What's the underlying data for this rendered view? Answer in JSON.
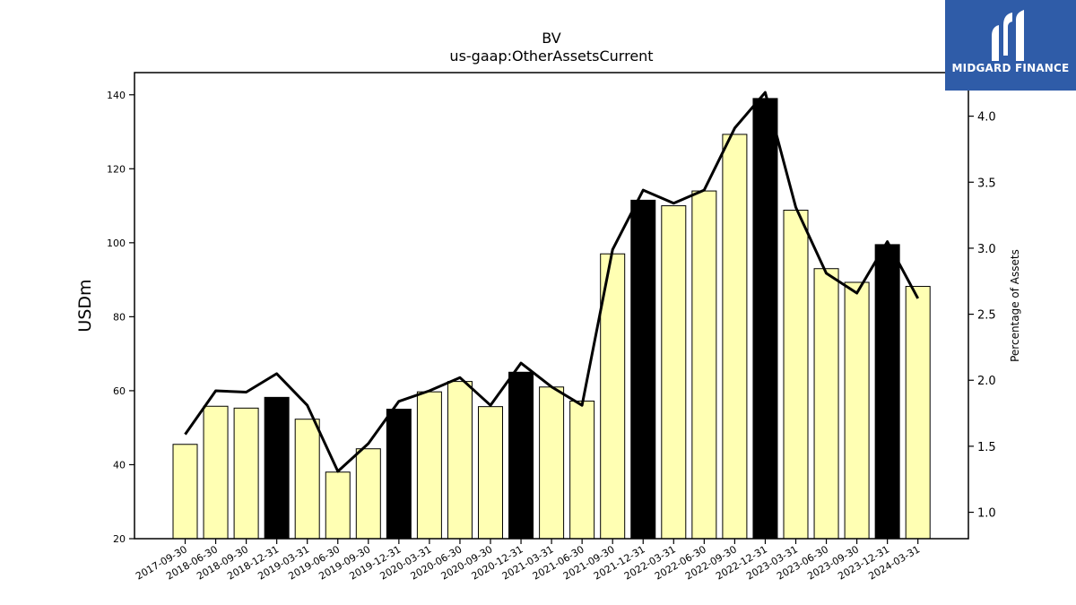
{
  "brand": {
    "name": "MIDGARD FINANCE",
    "color": "#2f5ca8"
  },
  "chart_data": {
    "type": "bar",
    "title": "BV",
    "subtitle": "us-gaap:OtherAssetsCurrent",
    "ylabel": "USDm",
    "y2label": "Percentage of Assets",
    "ylim": [
      20,
      146
    ],
    "y2lim": [
      0.8,
      4.33
    ],
    "yticks": [
      20,
      40,
      60,
      80,
      100,
      120,
      140
    ],
    "y2ticks": [
      1.0,
      1.5,
      2.0,
      2.5,
      3.0,
      3.5,
      4.0
    ],
    "categories": [
      "2017-09-30",
      "2018-06-30",
      "2018-09-30",
      "2018-12-31",
      "2019-03-31",
      "2019-06-30",
      "2019-09-30",
      "2019-12-31",
      "2020-03-31",
      "2020-06-30",
      "2020-09-30",
      "2020-12-31",
      "2021-03-31",
      "2021-06-30",
      "2021-09-30",
      "2021-12-31",
      "2022-03-31",
      "2022-06-30",
      "2022-09-30",
      "2022-12-31",
      "2023-03-31",
      "2023-06-30",
      "2023-09-30",
      "2023-12-31",
      "2024-03-31"
    ],
    "series": [
      {
        "type": "bar",
        "axis": "left",
        "values": [
          45.5,
          55.8,
          55.3,
          58.2,
          52.3,
          38.0,
          44.3,
          55.0,
          59.7,
          62.5,
          55.7,
          65.0,
          61.0,
          57.2,
          97.0,
          111.5,
          110.0,
          114.0,
          129.3,
          139.0,
          108.8,
          93.0,
          89.3,
          99.5,
          88.2
        ],
        "highlight": [
          false,
          false,
          false,
          true,
          false,
          false,
          false,
          true,
          false,
          false,
          false,
          true,
          false,
          false,
          false,
          true,
          false,
          false,
          false,
          true,
          false,
          false,
          false,
          true,
          false
        ],
        "color": "#ffffb3",
        "highlight_color": "#000000"
      },
      {
        "type": "line",
        "axis": "right",
        "values": [
          1.59,
          1.92,
          1.91,
          2.05,
          1.81,
          1.31,
          1.52,
          1.84,
          1.92,
          2.02,
          1.81,
          2.13,
          1.95,
          1.81,
          2.99,
          3.44,
          3.34,
          3.44,
          3.91,
          4.18,
          3.31,
          2.81,
          2.66,
          3.05,
          2.62
        ],
        "color": "#000000"
      }
    ],
    "grid": false,
    "legend": "none"
  }
}
